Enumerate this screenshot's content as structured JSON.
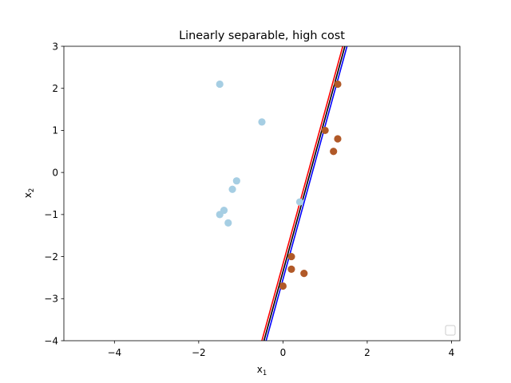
{
  "chart_data": {
    "type": "scatter",
    "title": "Linearly separable, high cost",
    "xlabel": {
      "base": "x",
      "sub": "1"
    },
    "ylabel": {
      "base": "x",
      "sub": "2"
    },
    "xlim": [
      -5.2,
      4.2
    ],
    "ylim": [
      -4,
      3
    ],
    "xticks": [
      -4,
      -2,
      0,
      2,
      4
    ],
    "yticks": [
      -4,
      -3,
      -2,
      -1,
      0,
      1,
      2,
      3
    ],
    "grid": false,
    "legend": {
      "placement": "lower-right",
      "entries": []
    },
    "series": [
      {
        "color": "#a6cee3",
        "points": [
          [
            -1.5,
            2.1
          ],
          [
            -0.5,
            1.2
          ],
          [
            -1.1,
            -0.2
          ],
          [
            -1.2,
            -0.4
          ],
          [
            -1.4,
            -0.9
          ],
          [
            -1.5,
            -1.0
          ],
          [
            -1.3,
            -1.2
          ],
          [
            0.4,
            -0.7
          ]
        ]
      },
      {
        "color": "#b15928",
        "points": [
          [
            1.3,
            2.1
          ],
          [
            1.0,
            1.0
          ],
          [
            1.3,
            0.8
          ],
          [
            1.2,
            0.5
          ],
          [
            0.2,
            -2.0
          ],
          [
            0.2,
            -2.3
          ],
          [
            0.5,
            -2.4
          ],
          [
            0.0,
            -2.7
          ]
        ]
      }
    ],
    "lines": [
      {
        "color": "#ff0000",
        "points": [
          [
            -0.5,
            -4
          ],
          [
            1.42,
            3
          ]
        ]
      },
      {
        "color": "#000000",
        "points": [
          [
            -0.45,
            -4
          ],
          [
            1.47,
            3
          ]
        ]
      },
      {
        "color": "#0000ff",
        "points": [
          [
            -0.4,
            -4
          ],
          [
            1.52,
            3
          ]
        ]
      }
    ]
  }
}
